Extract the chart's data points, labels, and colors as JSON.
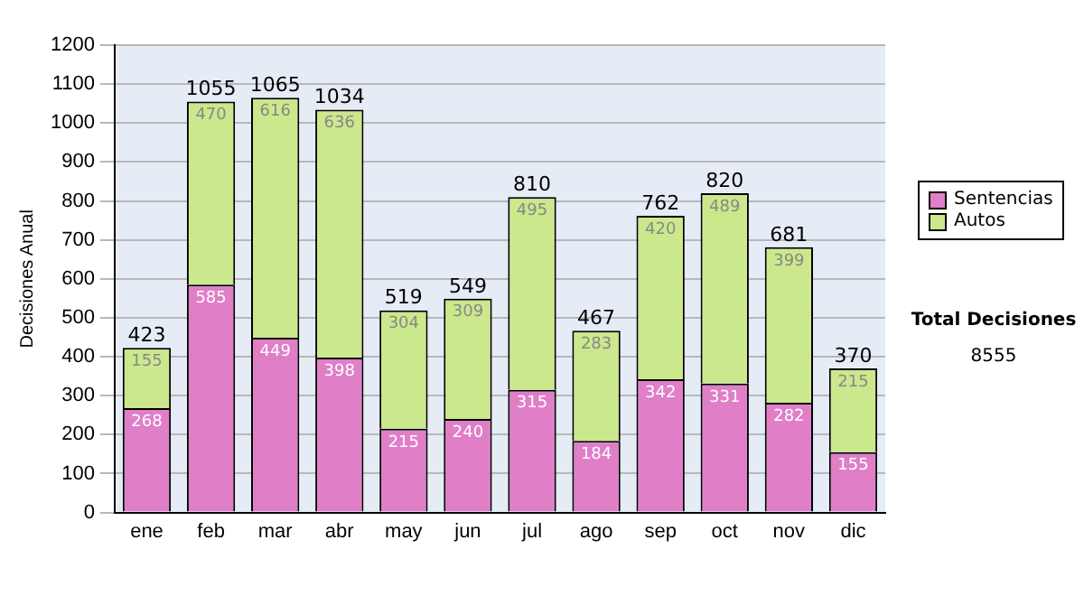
{
  "chart_data": {
    "type": "bar",
    "stacked": true,
    "ylabel": "Decisiones Anual",
    "categories": [
      "ene",
      "feb",
      "mar",
      "abr",
      "may",
      "jun",
      "jul",
      "ago",
      "sep",
      "oct",
      "nov",
      "dic"
    ],
    "series": [
      {
        "name": "Sentencias",
        "color": "#e07ec8",
        "values": [
          268,
          585,
          449,
          398,
          215,
          240,
          315,
          184,
          342,
          331,
          282,
          155
        ]
      },
      {
        "name": "Autos",
        "color": "#cce88c",
        "values": [
          155,
          470,
          616,
          636,
          304,
          309,
          495,
          283,
          420,
          489,
          399,
          215
        ]
      }
    ],
    "totals": [
      "423",
      "1055",
      "1065",
      "1034",
      "519",
      "549",
      "810",
      "467",
      "762",
      "820",
      "681",
      "370"
    ],
    "data_labels": true,
    "ylim": [
      0,
      1200
    ],
    "yticks": [
      0,
      100,
      200,
      300,
      400,
      500,
      600,
      700,
      800,
      900,
      1000,
      1100,
      1200
    ],
    "grid": "y",
    "legend": "right",
    "annotations": [
      "Total Decisiones",
      "8555"
    ]
  }
}
